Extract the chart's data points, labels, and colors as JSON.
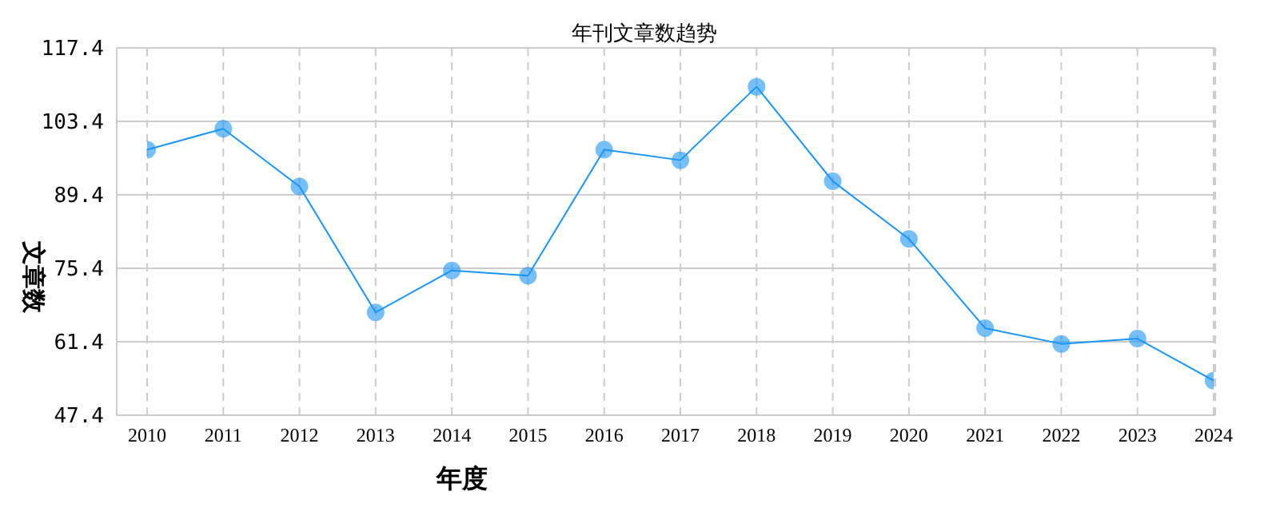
{
  "chart_data": {
    "type": "line",
    "title": "年刊文章数趋势",
    "xlabel": "年度",
    "ylabel": "文章数",
    "categories": [
      "2010",
      "2011",
      "2012",
      "2013",
      "2014",
      "2015",
      "2016",
      "2017",
      "2018",
      "2019",
      "2020",
      "2021",
      "2022",
      "2023",
      "2024"
    ],
    "series": [
      {
        "color": "#1a94f5",
        "values": [
          98,
          102,
          91,
          67,
          75,
          74,
          98,
          96,
          110,
          92,
          81,
          64,
          61,
          62,
          54
        ]
      }
    ],
    "ylim": [
      47.4,
      117.4
    ],
    "yticks": [
      47.4,
      61.4,
      75.4,
      89.4,
      103.4,
      117.4
    ],
    "grid": true,
    "marker": "circle",
    "line_style": "solid",
    "legend": false
  }
}
